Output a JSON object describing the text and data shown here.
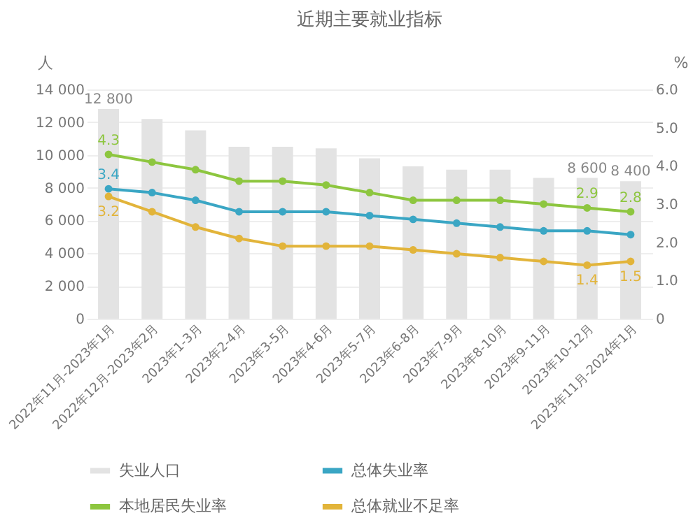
{
  "chart_data": {
    "type": "bar",
    "title": "近期主要就业指标",
    "ylabel": "人",
    "y2label": "%",
    "categories": [
      "2022年11月-2023年1月",
      "2022年12月-2023年2月",
      "2023年1-3月",
      "2023年2-4月",
      "2023年3-5月",
      "2023年4-6月",
      "2023年5-7月",
      "2023年6-8月",
      "2023年7-9月",
      "2023年8-10月",
      "2023年9-11月",
      "2023年10-12月",
      "2023年11月-2024年1月"
    ],
    "series": [
      {
        "name": "失业人口",
        "color": "#e3e3e3",
        "values": [
          12800,
          12200,
          11500,
          10500,
          10500,
          10400,
          9800,
          9300,
          9100,
          9100,
          8600,
          8600,
          8400
        ],
        "value_labels": [
          "12 800",
          null,
          null,
          null,
          null,
          null,
          null,
          null,
          null,
          null,
          null,
          "8 600",
          "8 400"
        ]
      },
      {
        "name": "总体失业率",
        "type": "line",
        "axis": "y2",
        "color": "#3aa6c4",
        "values": [
          3.4,
          3.3,
          3.1,
          2.8,
          2.8,
          2.8,
          2.7,
          2.6,
          2.5,
          2.4,
          2.3,
          2.3,
          2.2
        ],
        "value_labels": [
          "3.4",
          null,
          null,
          null,
          null,
          null,
          null,
          null,
          null,
          null,
          null,
          null,
          null
        ]
      },
      {
        "name": "本地居民失业率",
        "type": "line",
        "axis": "y2",
        "color": "#8dc63f",
        "values": [
          4.3,
          4.1,
          3.9,
          3.6,
          3.6,
          3.5,
          3.3,
          3.1,
          3.1,
          3.1,
          3.0,
          2.9,
          2.8
        ],
        "value_labels": [
          "4.3",
          null,
          null,
          null,
          null,
          null,
          null,
          null,
          null,
          null,
          null,
          "2.9",
          "2.8"
        ]
      },
      {
        "name": "总体就业不足率",
        "type": "line",
        "axis": "y2",
        "color": "#e2b43a",
        "values": [
          3.2,
          2.8,
          2.4,
          2.1,
          1.9,
          1.9,
          1.9,
          1.8,
          1.7,
          1.6,
          1.5,
          1.4,
          1.5
        ],
        "value_labels": [
          "3.2",
          null,
          null,
          null,
          null,
          null,
          null,
          null,
          null,
          null,
          null,
          "1.4",
          "1.5"
        ]
      }
    ],
    "ylim": [
      0,
      14000
    ],
    "yticks": [
      0,
      {
        "value": 2000,
        "label": "2 000"
      },
      {
        "value": 4000,
        "label": "4 000"
      },
      {
        "value": 6000,
        "label": "6 000"
      },
      {
        "value": 8000,
        "label": "8 000"
      },
      {
        "value": 10000,
        "label": "10 000"
      },
      {
        "value": 12000,
        "label": "12 000"
      },
      {
        "value": 14000,
        "label": "14 000"
      }
    ],
    "y2lim": [
      0,
      6
    ],
    "y2ticks": [
      0,
      {
        "value": 1,
        "label": "1.0"
      },
      {
        "value": 2,
        "label": "2.0"
      },
      {
        "value": 3,
        "label": "3.0"
      },
      {
        "value": 4,
        "label": "4.0"
      },
      {
        "value": 5,
        "label": "5.0"
      },
      {
        "value": 6,
        "label": "6.0"
      }
    ],
    "grid": "y",
    "legend": "bottom",
    "marker": "circle",
    "line_style": "solid"
  }
}
